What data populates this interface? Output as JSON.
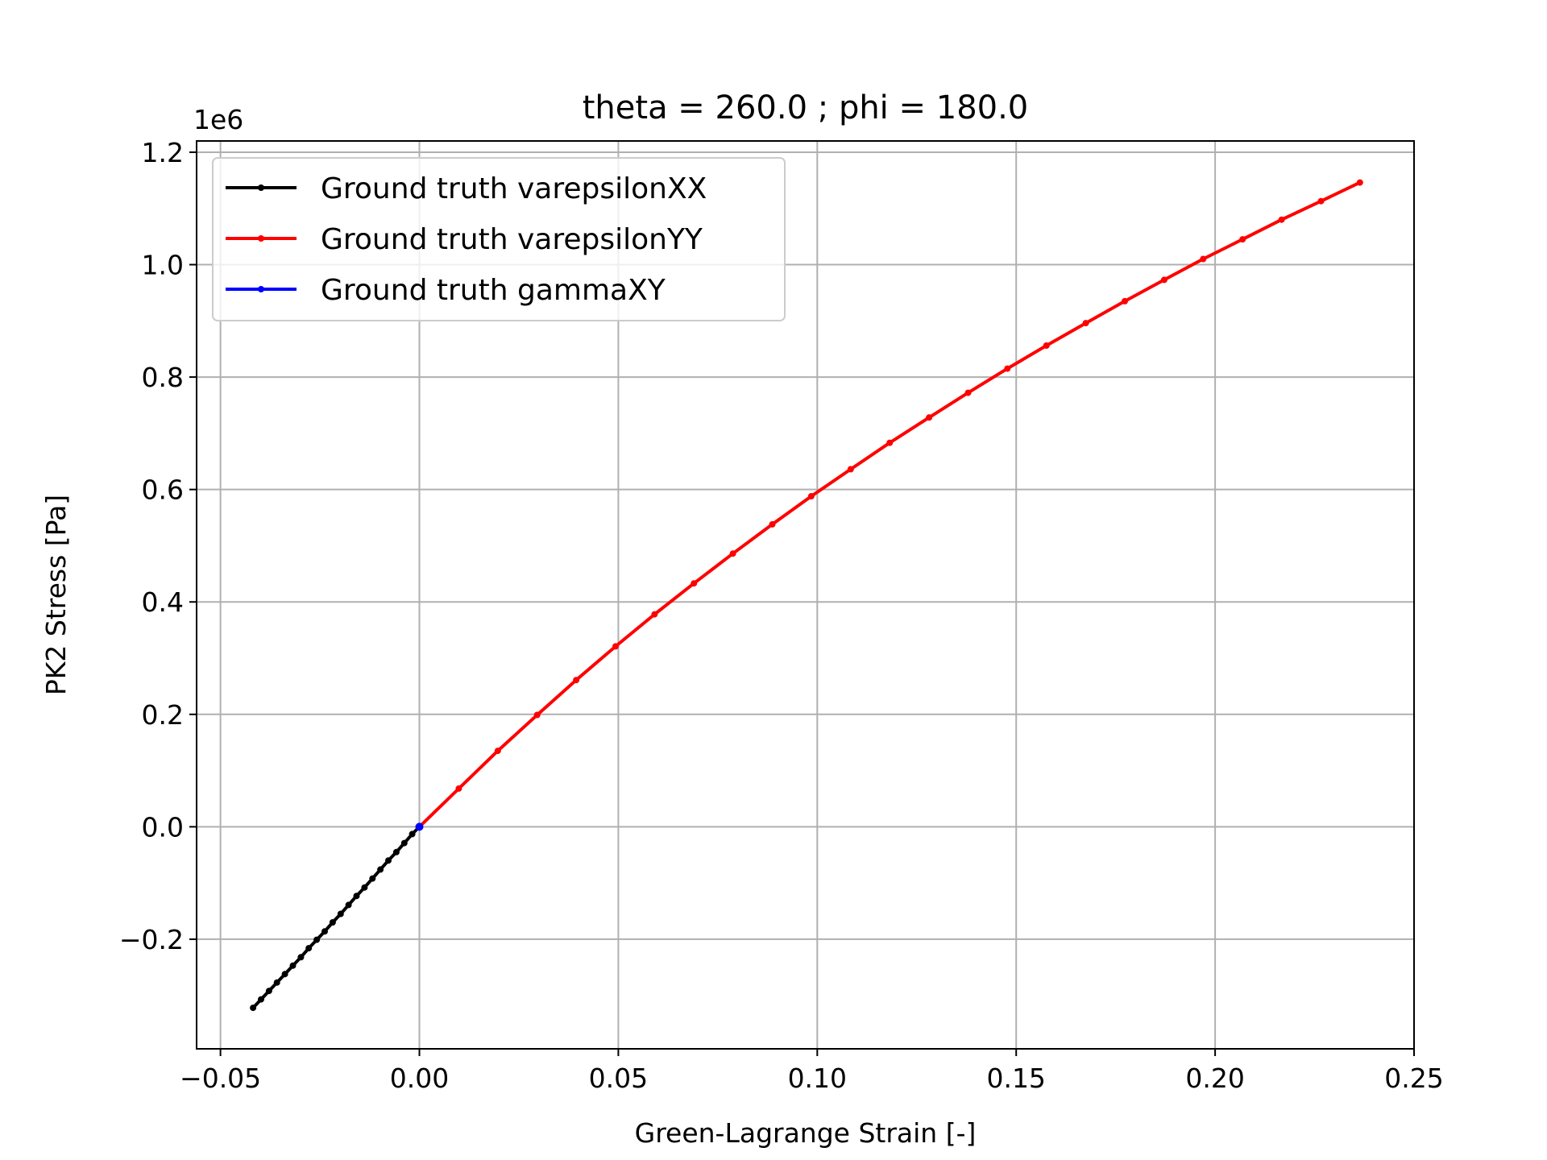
{
  "chart_data": {
    "type": "line",
    "title": "theta = 260.0 ; phi = 180.0",
    "xlabel": "Green-Lagrange Strain [-]",
    "ylabel": "PK2 Stress [Pa]",
    "y_offset_label": "1e6",
    "y_multiplier": 1000000,
    "xlim": [
      -0.056,
      0.25
    ],
    "ylim": [
      -0.395,
      1.22
    ],
    "xticks": [
      -0.05,
      0.0,
      0.05,
      0.1,
      0.15,
      0.2,
      0.25
    ],
    "xtick_labels": [
      "−0.05",
      "0.00",
      "0.05",
      "0.10",
      "0.15",
      "0.20",
      "0.25"
    ],
    "yticks": [
      -0.2,
      0.0,
      0.2,
      0.4,
      0.6,
      0.8,
      1.0,
      1.2
    ],
    "ytick_labels": [
      "−0.2",
      "0.0",
      "0.2",
      "0.4",
      "0.6",
      "0.8",
      "1.0",
      "1.2"
    ],
    "grid": true,
    "legend_position": "top-left",
    "series": [
      {
        "name": "Ground truth varepsilonXX",
        "color": "#000000",
        "x": [
          -0.0418,
          -0.0398,
          -0.0378,
          -0.0358,
          -0.0338,
          -0.0318,
          -0.0298,
          -0.0278,
          -0.0258,
          -0.0238,
          -0.0218,
          -0.0198,
          -0.0178,
          -0.0158,
          -0.0138,
          -0.0118,
          -0.0098,
          -0.0078,
          -0.0058,
          -0.0038,
          -0.0018,
          0.0
        ],
        "y": [
          -0.322,
          -0.307,
          -0.292,
          -0.277,
          -0.262,
          -0.247,
          -0.232,
          -0.216,
          -0.201,
          -0.186,
          -0.17,
          -0.155,
          -0.139,
          -0.123,
          -0.108,
          -0.092,
          -0.076,
          -0.06,
          -0.045,
          -0.029,
          -0.013,
          0.0
        ]
      },
      {
        "name": "Ground truth varepsilonYY",
        "color": "#ff0000",
        "x": [
          0.0,
          0.0099,
          0.0197,
          0.0296,
          0.0394,
          0.0493,
          0.0591,
          0.069,
          0.0788,
          0.0887,
          0.0985,
          0.1084,
          0.1182,
          0.1281,
          0.1379,
          0.1478,
          0.1576,
          0.1675,
          0.1773,
          0.1872,
          0.197,
          0.2069,
          0.2167,
          0.2266,
          0.2364
        ],
        "y": [
          0.0,
          0.068,
          0.135,
          0.199,
          0.261,
          0.321,
          0.378,
          0.433,
          0.486,
          0.538,
          0.588,
          0.636,
          0.683,
          0.728,
          0.772,
          0.815,
          0.856,
          0.896,
          0.935,
          0.973,
          1.01,
          1.045,
          1.08,
          1.113,
          1.146
        ]
      },
      {
        "name": "Ground truth gammaXY",
        "color": "#0000ff",
        "x": [
          0.0
        ],
        "y": [
          0.0
        ]
      }
    ]
  }
}
